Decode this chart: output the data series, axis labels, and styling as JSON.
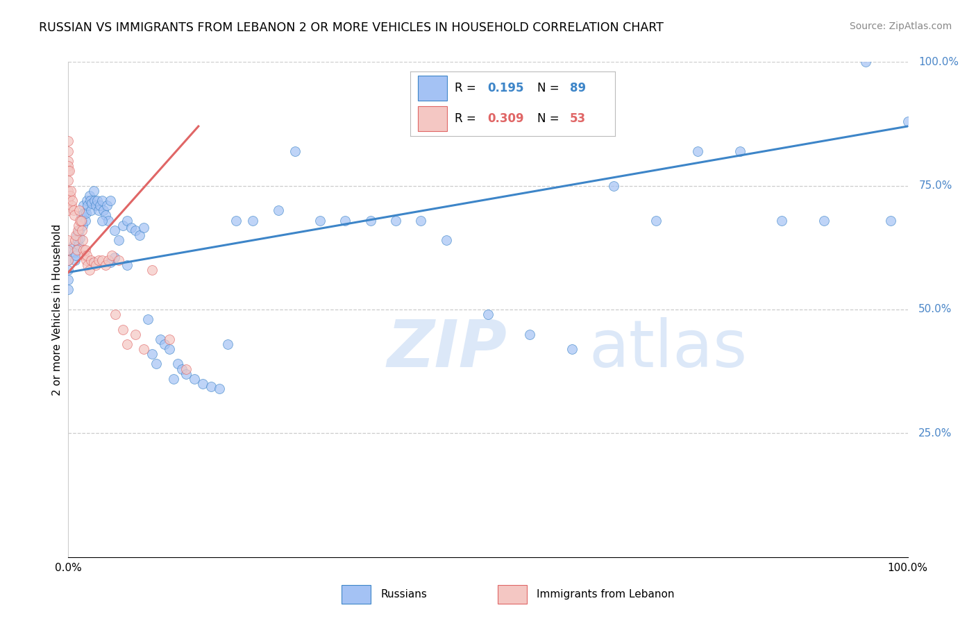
{
  "title": "RUSSIAN VS IMMIGRANTS FROM LEBANON 2 OR MORE VEHICLES IN HOUSEHOLD CORRELATION CHART",
  "source": "Source: ZipAtlas.com",
  "ylabel": "2 or more Vehicles in Household",
  "watermark": "ZIPatlas",
  "xlim": [
    0.0,
    1.0
  ],
  "ylim": [
    0.0,
    1.0
  ],
  "color_blue": "#a4c2f4",
  "color_pink": "#f4c7c3",
  "color_blue_line": "#3d85c8",
  "color_pink_line": "#e06666",
  "color_right_axis": "#4a86c8",
  "color_watermark": "#dce8f8",
  "legend_r_blue": "0.195",
  "legend_n_blue": "89",
  "legend_r_pink": "0.309",
  "legend_n_pink": "53",
  "blue_line_x": [
    0.0,
    1.0
  ],
  "blue_line_y": [
    0.575,
    0.87
  ],
  "pink_line_x": [
    0.0,
    0.155
  ],
  "pink_line_y": [
    0.575,
    0.87
  ],
  "blue_scatter_x": [
    0.0,
    0.0,
    0.0,
    0.0,
    0.0,
    0.006,
    0.007,
    0.008,
    0.009,
    0.01,
    0.011,
    0.012,
    0.013,
    0.014,
    0.015,
    0.016,
    0.017,
    0.018,
    0.019,
    0.02,
    0.021,
    0.022,
    0.023,
    0.025,
    0.026,
    0.027,
    0.028,
    0.03,
    0.031,
    0.033,
    0.034,
    0.036,
    0.038,
    0.04,
    0.042,
    0.044,
    0.046,
    0.048,
    0.05,
    0.055,
    0.06,
    0.065,
    0.07,
    0.075,
    0.08,
    0.085,
    0.09,
    0.095,
    0.1,
    0.105,
    0.11,
    0.115,
    0.12,
    0.125,
    0.13,
    0.135,
    0.14,
    0.15,
    0.16,
    0.17,
    0.18,
    0.19,
    0.2,
    0.22,
    0.25,
    0.27,
    0.3,
    0.33,
    0.36,
    0.39,
    0.42,
    0.45,
    0.5,
    0.55,
    0.6,
    0.65,
    0.7,
    0.75,
    0.8,
    0.85,
    0.9,
    0.95,
    0.98,
    1.0,
    0.04,
    0.07,
    0.05,
    0.055,
    0.03
  ],
  "blue_scatter_y": [
    0.62,
    0.6,
    0.58,
    0.56,
    0.54,
    0.63,
    0.615,
    0.6,
    0.61,
    0.65,
    0.64,
    0.63,
    0.66,
    0.645,
    0.69,
    0.68,
    0.67,
    0.71,
    0.695,
    0.68,
    0.695,
    0.72,
    0.71,
    0.73,
    0.72,
    0.7,
    0.715,
    0.74,
    0.72,
    0.71,
    0.72,
    0.7,
    0.71,
    0.72,
    0.7,
    0.69,
    0.71,
    0.68,
    0.72,
    0.66,
    0.64,
    0.67,
    0.68,
    0.665,
    0.66,
    0.65,
    0.665,
    0.48,
    0.41,
    0.39,
    0.44,
    0.43,
    0.42,
    0.36,
    0.39,
    0.38,
    0.37,
    0.36,
    0.35,
    0.345,
    0.34,
    0.43,
    0.68,
    0.68,
    0.7,
    0.82,
    0.68,
    0.68,
    0.68,
    0.68,
    0.68,
    0.64,
    0.49,
    0.45,
    0.42,
    0.75,
    0.68,
    0.82,
    0.82,
    0.68,
    0.68,
    1.0,
    0.68,
    0.88,
    0.68,
    0.59,
    0.595,
    0.605,
    0.595
  ],
  "pink_scatter_x": [
    0.0,
    0.0,
    0.0,
    0.0,
    0.0,
    0.0,
    0.0,
    0.0,
    0.0,
    0.0,
    0.0,
    0.0,
    0.001,
    0.002,
    0.003,
    0.004,
    0.005,
    0.006,
    0.007,
    0.008,
    0.009,
    0.01,
    0.011,
    0.012,
    0.013,
    0.014,
    0.015,
    0.016,
    0.017,
    0.018,
    0.019,
    0.02,
    0.021,
    0.022,
    0.023,
    0.025,
    0.027,
    0.03,
    0.033,
    0.036,
    0.04,
    0.044,
    0.048,
    0.052,
    0.056,
    0.06,
    0.065,
    0.07,
    0.08,
    0.09,
    0.1,
    0.12,
    0.14
  ],
  "pink_scatter_y": [
    0.8,
    0.79,
    0.78,
    0.76,
    0.74,
    0.72,
    0.7,
    0.84,
    0.82,
    0.64,
    0.62,
    0.6,
    0.78,
    0.73,
    0.74,
    0.71,
    0.72,
    0.7,
    0.69,
    0.64,
    0.65,
    0.62,
    0.66,
    0.67,
    0.7,
    0.68,
    0.68,
    0.66,
    0.64,
    0.62,
    0.61,
    0.62,
    0.6,
    0.61,
    0.59,
    0.58,
    0.6,
    0.595,
    0.59,
    0.6,
    0.6,
    0.59,
    0.6,
    0.61,
    0.49,
    0.6,
    0.46,
    0.43,
    0.45,
    0.42,
    0.58,
    0.44,
    0.38
  ]
}
